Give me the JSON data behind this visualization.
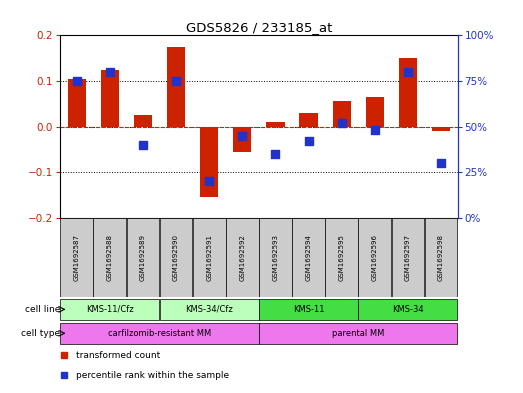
{
  "title": "GDS5826 / 233185_at",
  "samples": [
    "GSM1692587",
    "GSM1692588",
    "GSM1692589",
    "GSM1692590",
    "GSM1692591",
    "GSM1692592",
    "GSM1692593",
    "GSM1692594",
    "GSM1692595",
    "GSM1692596",
    "GSM1692597",
    "GSM1692598"
  ],
  "transformed_count": [
    0.105,
    0.125,
    0.025,
    0.175,
    -0.155,
    -0.055,
    0.01,
    0.03,
    0.055,
    0.065,
    0.15,
    -0.01
  ],
  "percentile_rank": [
    75,
    80,
    40,
    75,
    20,
    45,
    35,
    42,
    52,
    48,
    80,
    30
  ],
  "red_color": "#cc2200",
  "blue_color": "#2233cc",
  "ylim_left": [
    -0.2,
    0.2
  ],
  "ylim_right": [
    0,
    100
  ],
  "yticks_left": [
    -0.2,
    -0.1,
    0.0,
    0.1,
    0.2
  ],
  "yticks_right": [
    0,
    25,
    50,
    75,
    100
  ],
  "ytick_labels_right": [
    "0%",
    "25%",
    "50%",
    "75%",
    "100%"
  ],
  "cell_line_groups": [
    {
      "label": "KMS-11/Cfz",
      "start": 0,
      "end": 2,
      "color": "#bbffbb"
    },
    {
      "label": "KMS-34/Cfz",
      "start": 3,
      "end": 5,
      "color": "#bbffbb"
    },
    {
      "label": "KMS-11",
      "start": 6,
      "end": 8,
      "color": "#44dd44"
    },
    {
      "label": "KMS-34",
      "start": 9,
      "end": 11,
      "color": "#44dd44"
    }
  ],
  "cell_type_groups": [
    {
      "label": "carfilzomib-resistant MM",
      "start": 0,
      "end": 5,
      "color": "#ee77ee"
    },
    {
      "label": "parental MM",
      "start": 6,
      "end": 11,
      "color": "#ee77ee"
    }
  ],
  "cell_line_row_label": "cell line",
  "cell_type_row_label": "cell type",
  "legend_entries": [
    {
      "label": "transformed count",
      "color": "#cc2200"
    },
    {
      "label": "percentile rank within the sample",
      "color": "#2233cc"
    }
  ],
  "bg_color": "#ffffff",
  "tick_bg_color": "#cccccc",
  "bar_width": 0.55,
  "dot_size": 30
}
